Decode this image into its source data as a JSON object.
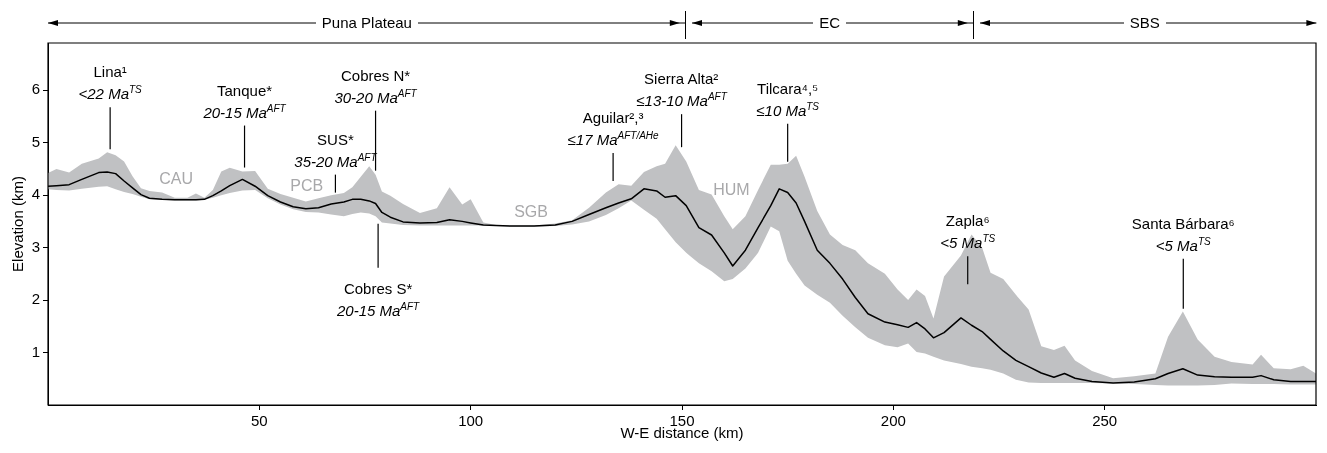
{
  "chart_data": {
    "type": "line",
    "xlabel": "W-E distance (km)",
    "ylabel": "Elevation (km)",
    "xlim": [
      0,
      300
    ],
    "ylim": [
      0,
      6.9
    ],
    "xticks": [
      50,
      100,
      150,
      200,
      250
    ],
    "yticks": [
      1,
      2,
      3,
      4,
      5,
      6
    ],
    "marker": "none",
    "annotations": [
      "Puna Plateau",
      "EC",
      "SBS",
      "CAU",
      "PCB",
      "SGB",
      "HUM",
      {
        "text": "Lina¹\n<22 Ma$^{TS}$",
        "x": 14.7,
        "y": 4.8
      },
      {
        "text": "Tanque*\n20-15 Ma$^{AFT}$",
        "x": 46.5,
        "y": 4.45
      },
      {
        "text": "Cobres N*\n30-20 Ma$^{AFT}$",
        "x": 77.5,
        "y": 4.39
      },
      {
        "text": "SUS*\n35-20 Ma$^{AFT}$",
        "x": 68,
        "y": 4.01
      },
      {
        "text": "Cobres S*\n20-15 Ma$^{AFT}$",
        "x": 78.1,
        "y": 3.53
      },
      {
        "text": "Aguilar²,³\n≤17 Ma$^{AFT/AHe}$",
        "x": 133.7,
        "y": 4.23
      },
      {
        "text": "Sierra Alta²\n≤13-10 Ma$^{AFT}$",
        "x": 149.9,
        "y": 4.8
      },
      {
        "text": "Tilcara⁴,⁵\n≤10 Ma$^{TS}$",
        "x": 175,
        "y": 4.6
      },
      {
        "text": "Zapla⁶\n<5 Ma$^{TS}$",
        "x": 217.6,
        "y": 3.1
      },
      {
        "text": "Santa Bárbara⁶\n<5 Ma$^{TS}$",
        "x": 268.6,
        "y": 1.76
      }
    ],
    "series": [
      {
        "color": "#000000",
        "x": [
          0,
          2,
          5,
          8,
          12,
          14,
          16,
          18,
          20,
          22,
          24,
          27,
          30,
          33,
          35,
          37,
          39,
          41,
          43,
          46,
          49,
          52,
          55,
          58,
          61,
          64,
          67,
          70,
          72,
          74,
          76,
          77.5,
          79,
          81,
          84,
          88,
          92,
          95,
          98,
          100,
          103,
          106,
          110,
          115,
          120,
          124,
          128,
          132,
          135,
          138,
          141,
          144,
          146,
          148.5,
          151,
          154,
          157,
          160,
          162,
          165,
          168,
          171,
          173,
          175,
          177,
          179,
          182,
          185,
          188,
          191,
          194,
          198,
          201,
          203.5,
          205.5,
          207.5,
          209.5,
          212,
          216,
          218.5,
          221,
          223,
          226,
          229,
          232,
          235,
          238,
          240.5,
          243,
          247,
          252,
          257,
          262,
          265,
          268.5,
          272,
          276,
          280,
          285,
          287,
          290,
          294,
          297,
          300
        ],
        "values": [
          4.17,
          4.18,
          4.2,
          4.3,
          4.43,
          4.44,
          4.41,
          4.27,
          4.14,
          4.01,
          3.94,
          3.92,
          3.91,
          3.91,
          3.91,
          3.92,
          3.99,
          4.08,
          4.18,
          4.3,
          4.17,
          3.99,
          3.87,
          3.78,
          3.74,
          3.76,
          3.83,
          3.87,
          3.92,
          3.92,
          3.89,
          3.84,
          3.67,
          3.58,
          3.49,
          3.47,
          3.48,
          3.53,
          3.5,
          3.47,
          3.43,
          3.42,
          3.41,
          3.41,
          3.43,
          3.5,
          3.63,
          3.76,
          3.85,
          3.93,
          4.12,
          4.08,
          3.96,
          3.99,
          3.8,
          3.38,
          3.24,
          2.9,
          2.65,
          2.95,
          3.38,
          3.8,
          4.12,
          4.05,
          3.85,
          3.5,
          2.95,
          2.7,
          2.4,
          2.05,
          1.74,
          1.58,
          1.53,
          1.48,
          1.57,
          1.45,
          1.28,
          1.38,
          1.66,
          1.52,
          1.4,
          1.25,
          1.03,
          0.85,
          0.73,
          0.61,
          0.53,
          0.6,
          0.51,
          0.45,
          0.42,
          0.44,
          0.5,
          0.6,
          0.69,
          0.57,
          0.54,
          0.53,
          0.53,
          0.56,
          0.48,
          0.45,
          0.45,
          0.45
        ],
        "lower": [
          4.11,
          4.1,
          4.09,
          4.12,
          4.16,
          4.17,
          4.11,
          4.06,
          4.02,
          3.97,
          3.92,
          3.91,
          3.9,
          3.9,
          3.9,
          3.91,
          3.95,
          4.0,
          4.04,
          4.09,
          4.1,
          3.94,
          3.82,
          3.73,
          3.68,
          3.67,
          3.63,
          3.6,
          3.64,
          3.67,
          3.65,
          3.6,
          3.48,
          3.46,
          3.43,
          3.42,
          3.42,
          3.42,
          3.42,
          3.42,
          3.42,
          3.41,
          3.4,
          3.4,
          3.41,
          3.44,
          3.5,
          3.62,
          3.75,
          3.9,
          3.72,
          3.55,
          3.35,
          3.1,
          2.9,
          2.7,
          2.55,
          2.36,
          2.4,
          2.6,
          2.9,
          3.4,
          3.31,
          2.75,
          2.5,
          2.28,
          2.1,
          1.95,
          1.7,
          1.48,
          1.28,
          1.14,
          1.1,
          1.17,
          1.01,
          0.98,
          0.92,
          0.85,
          0.78,
          0.73,
          0.7,
          0.67,
          0.6,
          0.48,
          0.43,
          0.42,
          0.42,
          0.42,
          0.42,
          0.42,
          0.41,
          0.4,
          0.38,
          0.37,
          0.37,
          0.37,
          0.38,
          0.41,
          0.4,
          0.4,
          0.4,
          0.39,
          0.39,
          0.39
        ],
        "upper": [
          4.42,
          4.5,
          4.43,
          4.6,
          4.7,
          4.82,
          4.76,
          4.64,
          4.36,
          4.13,
          4.08,
          4.05,
          3.95,
          3.95,
          4.03,
          3.95,
          4.1,
          4.45,
          4.52,
          4.45,
          4.46,
          4.12,
          4.02,
          3.95,
          3.88,
          3.94,
          4.0,
          4.04,
          4.15,
          4.35,
          4.55,
          4.39,
          4.07,
          3.99,
          3.83,
          3.66,
          3.75,
          4.15,
          3.82,
          3.92,
          3.48,
          3.43,
          3.42,
          3.42,
          3.46,
          3.52,
          3.76,
          4.05,
          4.21,
          4.18,
          4.44,
          4.55,
          4.6,
          4.95,
          4.64,
          4.1,
          4.01,
          3.6,
          3.35,
          3.6,
          4.1,
          4.58,
          4.58,
          4.6,
          4.75,
          4.35,
          3.7,
          3.25,
          3.05,
          2.95,
          2.7,
          2.5,
          2.2,
          2.0,
          2.2,
          2.08,
          1.65,
          2.45,
          2.85,
          3.25,
          3.0,
          2.52,
          2.4,
          2.1,
          1.82,
          1.12,
          1.05,
          1.13,
          0.85,
          0.65,
          0.51,
          0.55,
          0.6,
          1.3,
          1.78,
          1.25,
          0.92,
          0.82,
          0.77,
          0.96,
          0.7,
          0.68,
          0.75,
          0.6
        ]
      }
    ]
  }
}
